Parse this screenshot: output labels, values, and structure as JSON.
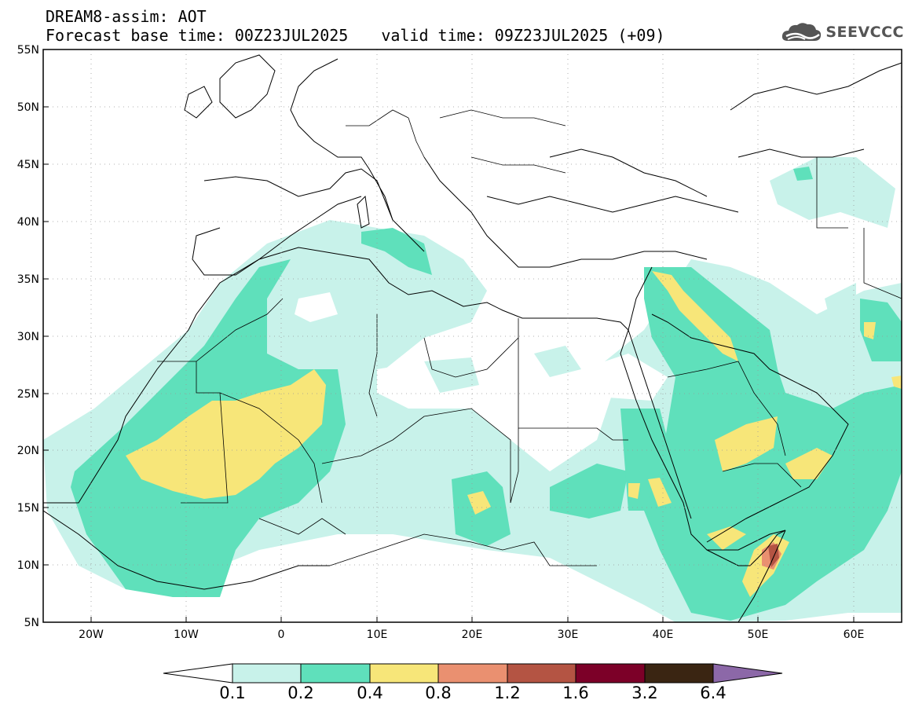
{
  "header": {
    "line1": "DREAM8-assim: AOT",
    "base_time": "Forecast base time: 00Z23JUL2025",
    "valid_time": "valid time: 09Z23JUL2025 (+09)"
  },
  "logo": {
    "text": "SEEVCCC",
    "icon": "cloud-icon",
    "color": "#555555"
  },
  "map": {
    "lat_labels": [
      "55N",
      "50N",
      "45N",
      "40N",
      "35N",
      "30N",
      "25N",
      "20N",
      "15N",
      "10N",
      "5N"
    ],
    "lon_labels": [
      "20W",
      "10W",
      "0",
      "10E",
      "20E",
      "30E",
      "40E",
      "50E",
      "60E"
    ]
  },
  "colorbar": {
    "labels": [
      "0.1",
      "0.2",
      "0.4",
      "0.8",
      "1.2",
      "1.6",
      "3.2",
      "6.4"
    ],
    "colors": [
      "#ffffff",
      "#c8f2ea",
      "#5fe0bb",
      "#f7e679",
      "#ea9070",
      "#b45443",
      "#7c0028",
      "#3a2512",
      "#8c68a8"
    ]
  },
  "palette": {
    "light": "#c8f2ea",
    "green": "#5fe0bb",
    "yellow": "#f7e679",
    "orange": "#ea9070",
    "red": "#b45443"
  }
}
